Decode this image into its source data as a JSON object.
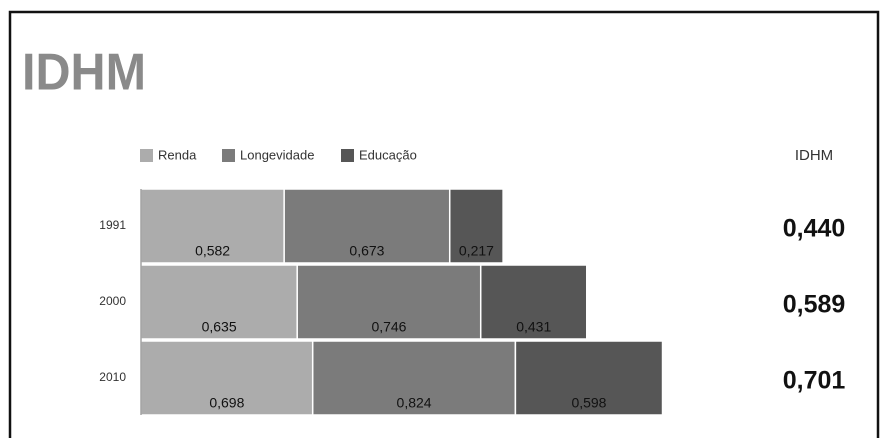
{
  "chart_data": {
    "type": "stacked-bar",
    "title": "IDHM",
    "categories": [
      "1991",
      "2000",
      "2010"
    ],
    "series": [
      {
        "name": "Renda",
        "color": "#acacac",
        "values": [
          0.582,
          0.635,
          0.698
        ],
        "value_labels": [
          "0,582",
          "0,635",
          "0,698"
        ]
      },
      {
        "name": "Longevidade",
        "color": "#7b7b7b",
        "values": [
          0.673,
          0.746,
          0.824
        ],
        "value_labels": [
          "0,673",
          "0,746",
          "0,824"
        ]
      },
      {
        "name": "Educação",
        "color": "#565656",
        "values": [
          0.217,
          0.431,
          0.598
        ],
        "value_labels": [
          "0,217",
          "0,431",
          "0,598"
        ]
      }
    ],
    "idhm": {
      "header": "IDHM",
      "labels": [
        "0,440",
        "0,589",
        "0,701"
      ]
    }
  }
}
